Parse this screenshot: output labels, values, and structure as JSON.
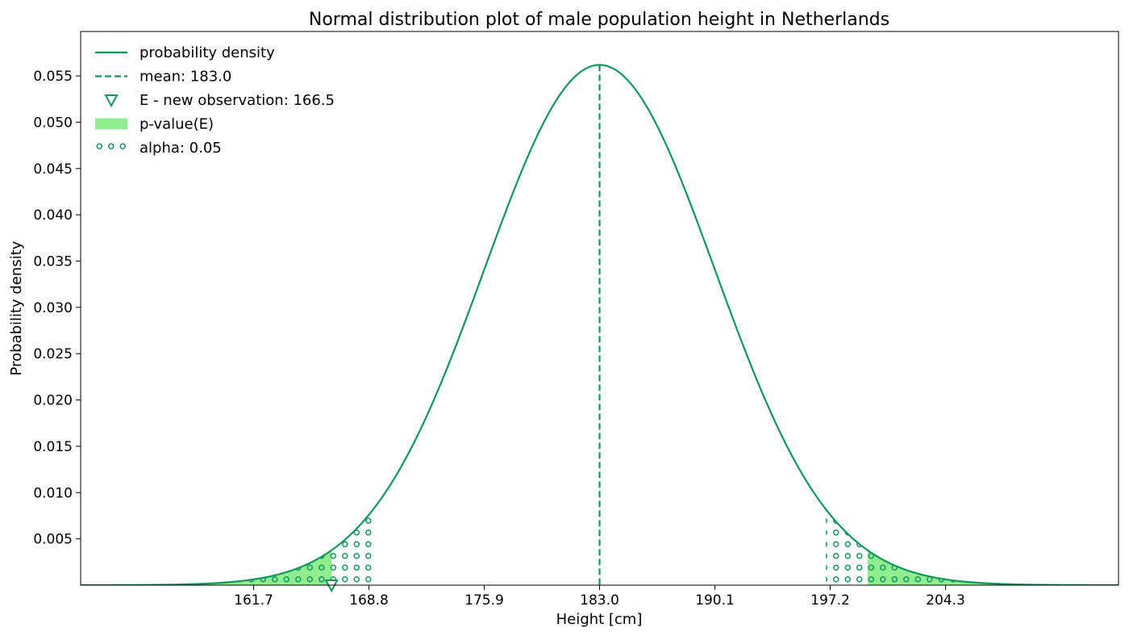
{
  "chart_data": {
    "type": "line",
    "title": "Normal distribution plot of male population height in Netherlands",
    "xlabel": "Height [cm]",
    "ylabel": "Probability density",
    "xlim": [
      151.05,
      214.95
    ],
    "ylim": [
      0,
      0.0598
    ],
    "grid": false,
    "legend_position": "top-left",
    "distribution": {
      "mean": 183.0,
      "std_dev": 7.1
    },
    "x_ticks": [
      161.7,
      168.8,
      175.9,
      183.0,
      190.1,
      197.2,
      204.3
    ],
    "x_tick_labels": [
      "161.7",
      "168.8",
      "175.9",
      "183.0",
      "190.1",
      "197.2",
      "204.3"
    ],
    "y_ticks": [
      0.005,
      0.01,
      0.015,
      0.02,
      0.025,
      0.03,
      0.035,
      0.04,
      0.045,
      0.05,
      0.055
    ],
    "y_tick_labels": [
      "0.005",
      "0.010",
      "0.015",
      "0.020",
      "0.025",
      "0.030",
      "0.035",
      "0.040",
      "0.045",
      "0.050",
      "0.055"
    ],
    "series": [
      {
        "name": "probability density",
        "kind": "pdf-curve",
        "color": "#11965b"
      },
      {
        "name": "mean: 183.0",
        "kind": "vertical-dashed-line",
        "x": 183.0,
        "color": "#11965b"
      },
      {
        "name": "E - new observation: 166.5",
        "kind": "marker-triangle-down",
        "x": 166.5,
        "y": 0,
        "color": "#11965b"
      },
      {
        "name": "p-value(E)",
        "kind": "shaded-tails",
        "left_tail_upper": 166.5,
        "right_tail_lower": 199.5,
        "color": "#90ee90"
      },
      {
        "name": "alpha: 0.05",
        "kind": "hatched-tails",
        "left_tail_upper": 169.08,
        "right_tail_lower": 196.92,
        "hatch": "circles",
        "color": "#11965b"
      }
    ],
    "legend": [
      {
        "label": "probability density",
        "symbol": "line"
      },
      {
        "label": "mean: 183.0",
        "symbol": "dashed-line"
      },
      {
        "label": "E - new observation: 166.5",
        "symbol": "triangle-down"
      },
      {
        "label": "p-value(E)",
        "symbol": "filled-patch"
      },
      {
        "label": "alpha: 0.05",
        "symbol": "hatched-patch"
      }
    ]
  }
}
